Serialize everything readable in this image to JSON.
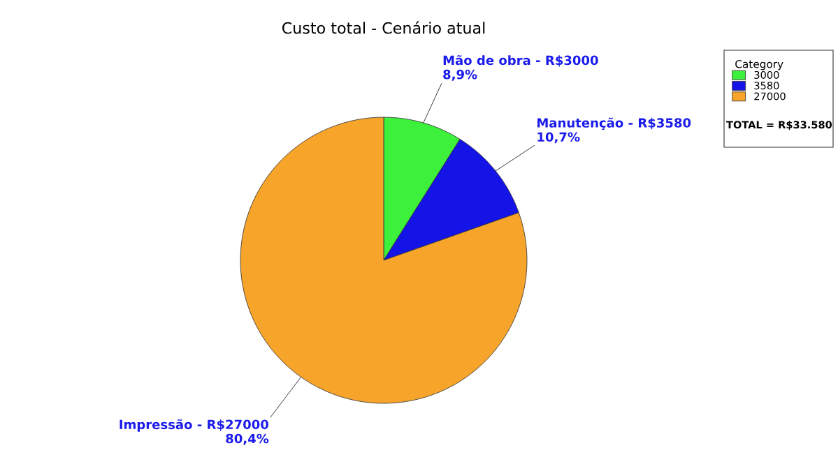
{
  "chart_data": {
    "type": "pie",
    "title": "Custo total - Cenário atual",
    "categories": [
      "3000",
      "3580",
      "27000"
    ],
    "values": [
      3000,
      3580,
      27000
    ],
    "colors": [
      "#3cf03c",
      "#1414e6",
      "#f7a42b"
    ],
    "value_labels": [
      "Mão de obra - R$3000\n8,9%",
      "Manutenção - R$3580\n10,7%",
      "Impressão - R$27000\n80,4%"
    ],
    "legend_title": "Category",
    "legend": "top right",
    "annotations": [
      "TOTAL = R$33.580"
    ]
  }
}
